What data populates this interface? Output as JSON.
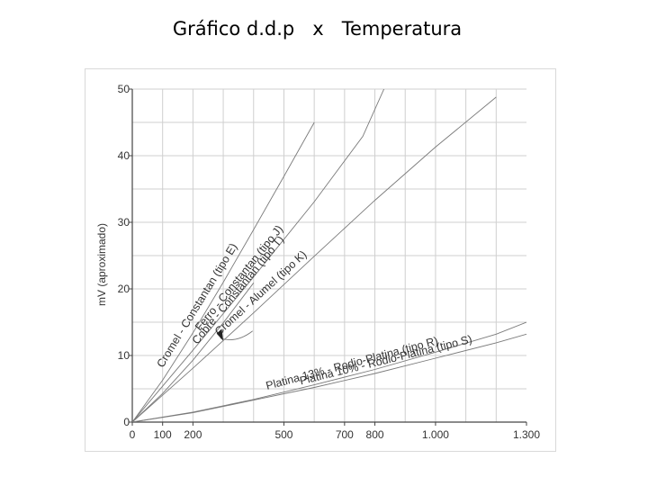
{
  "page": {
    "title": "Gráfico d.d.p   x   Temperatura"
  },
  "chart_data": {
    "type": "line",
    "title": "Gráfico d.d.p   x   Temperatura",
    "xlabel": "",
    "ylabel": "mV (aproximado)",
    "xlim": [
      0,
      1300
    ],
    "ylim": [
      0,
      50
    ],
    "grid": true,
    "x_ticks": [
      0,
      100,
      200,
      500,
      700,
      800,
      1000,
      1300
    ],
    "x_tick_labels": [
      "0",
      "100",
      "200",
      "500",
      "700",
      "800",
      "1.000",
      "1.300"
    ],
    "y_ticks": [
      0,
      10,
      20,
      30,
      40,
      50
    ],
    "y_tick_labels": [
      "0",
      "10",
      "20",
      "30",
      "40",
      "50"
    ],
    "series": [
      {
        "name": "Cromel - Constantan (tipo E)",
        "x": [
          0,
          100,
          200,
          300,
          400,
          500,
          600
        ],
        "y": [
          0,
          6.3,
          13.4,
          21.0,
          28.9,
          36.9,
          45.0
        ]
      },
      {
        "name": "Ferro - Constantan (tipo J)",
        "x": [
          0,
          200,
          400,
          600,
          760,
          830
        ],
        "y": [
          0,
          10.8,
          21.8,
          33.1,
          42.9,
          50.0
        ]
      },
      {
        "name": "Cromel - Alumel (tipo K)",
        "x": [
          0,
          200,
          400,
          600,
          800,
          1000,
          1200
        ],
        "y": [
          0,
          8.1,
          16.4,
          24.9,
          33.3,
          41.3,
          48.8
        ]
      },
      {
        "name": "Cobre - Constantan (tipo T)",
        "x": [
          0,
          100,
          200,
          300,
          400
        ],
        "y": [
          0,
          4.3,
          9.3,
          14.9,
          20.9
        ]
      },
      {
        "name": "Platina 13% - Rodio-Platina (tipo R)",
        "x": [
          0,
          200,
          400,
          600,
          800,
          1000,
          1200,
          1300
        ],
        "y": [
          0,
          1.5,
          3.4,
          5.6,
          7.9,
          10.5,
          13.2,
          15.0
        ]
      },
      {
        "name": "Platina 10% - Rodio-Platina (tipo S)",
        "x": [
          0,
          200,
          400,
          600,
          800,
          1000,
          1200,
          1300
        ],
        "y": [
          0,
          1.4,
          3.3,
          5.2,
          7.3,
          9.6,
          11.9,
          13.2
        ]
      }
    ],
    "colors": {
      "axis": "#444444",
      "grid": "#cfcfcf",
      "series": "#7a7a7a",
      "labels": "#333333"
    }
  }
}
